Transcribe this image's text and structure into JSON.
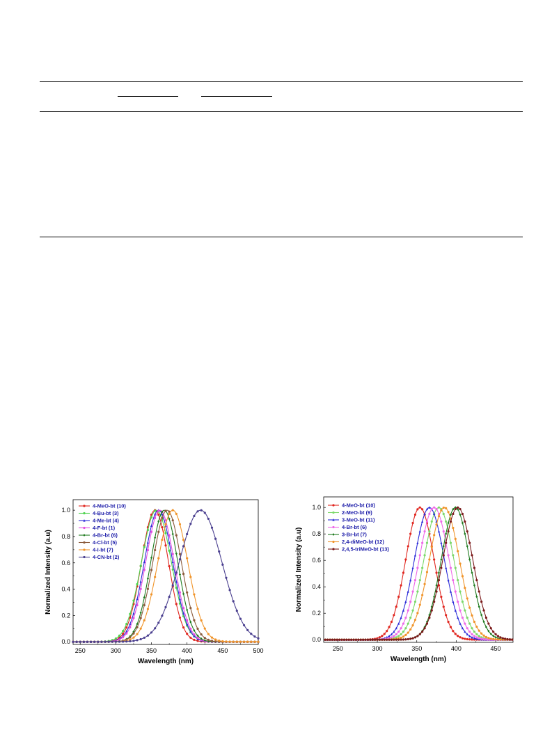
{
  "chart_data": [
    {
      "type": "line",
      "xlabel": "Wavelength (nm)",
      "ylabel": "Normalized Intensity (a.u)",
      "xlim": [
        240,
        500
      ],
      "ylim": [
        -0.02,
        1.08
      ],
      "xticks": [
        250,
        300,
        350,
        400,
        450,
        500
      ],
      "yticks": [
        0.0,
        0.2,
        0.4,
        0.6,
        0.8,
        1.0
      ],
      "legend_position": "top-left",
      "grid": false,
      "series": [
        {
          "name": "4-MeO-bt (10)",
          "color": "#e0261f",
          "marker": "circle",
          "peak": 355,
          "width": 19,
          "peak_value": 1.0
        },
        {
          "name": "4-Ḅu-bt (3)",
          "color": "#4fd34f",
          "marker": "circle",
          "peak": 357,
          "width": 21,
          "peak_value": 1.0
        },
        {
          "name": "4-Me-bt (4)",
          "color": "#2a2ad8",
          "marker": "triangle",
          "peak": 360,
          "width": 20,
          "peak_value": 1.0
        },
        {
          "name": "4-F-bt (1)",
          "color": "#e34fe0",
          "marker": "circle",
          "peak": 362,
          "width": 20,
          "peak_value": 1.0
        },
        {
          "name": "4-Br-bt (6)",
          "color": "#1e7a1e",
          "marker": "diamond",
          "peak": 368,
          "width": 19,
          "peak_value": 1.0
        },
        {
          "name": "4-Cl-bt (5)",
          "color": "#8a5a3a",
          "marker": "circle",
          "peak": 372,
          "width": 20,
          "peak_value": 1.0
        },
        {
          "name": "4-I-bt (7)",
          "color": "#f0942a",
          "marker": "circle",
          "peak": 380,
          "width": 21,
          "peak_value": 1.0
        },
        {
          "name": "4-CN-bt (2)",
          "color": "#4a3f8f",
          "marker": "circle",
          "peak": 419,
          "width": 30,
          "peak_value": 1.0
        }
      ]
    },
    {
      "type": "line",
      "xlabel": "Wavelength (nm)",
      "ylabel": "Normalized Intensity (a.u)",
      "xlim": [
        232,
        472
      ],
      "ylim": [
        -0.02,
        1.08
      ],
      "xticks": [
        250,
        300,
        350,
        400,
        450
      ],
      "yticks": [
        0.0,
        0.2,
        0.4,
        0.6,
        0.8,
        1.0
      ],
      "legend_position": "top-left",
      "grid": false,
      "series": [
        {
          "name": "4-MeO-bt (10)",
          "color": "#e0261f",
          "marker": "circle",
          "peak": 354,
          "width": 18,
          "peak_value": 1.0
        },
        {
          "name": "2-MeO-bt (9)",
          "color": "#7cd86a",
          "marker": "circle",
          "peak": 378,
          "width": 19,
          "peak_value": 1.0
        },
        {
          "name": "3-MeO-bt (11)",
          "color": "#2a2ad8",
          "marker": "triangle",
          "peak": 366,
          "width": 19,
          "peak_value": 1.0
        },
        {
          "name": "4-Br-bt (6)",
          "color": "#ee6ae8",
          "marker": "circle",
          "peak": 372,
          "width": 19,
          "peak_value": 1.0
        },
        {
          "name": "3-Br-bt (7)",
          "color": "#1e7a1e",
          "marker": "diamond",
          "peak": 399,
          "width": 18,
          "peak_value": 1.0
        },
        {
          "name": "2,4-diMeO-bt (12)",
          "color": "#f0942a",
          "marker": "circle",
          "peak": 385,
          "width": 19,
          "peak_value": 1.0
        },
        {
          "name": "2,4,5-triMeO-bt (13)",
          "color": "#7a1a1a",
          "marker": "circle",
          "peak": 402,
          "width": 19,
          "peak_value": 1.0
        }
      ]
    }
  ]
}
